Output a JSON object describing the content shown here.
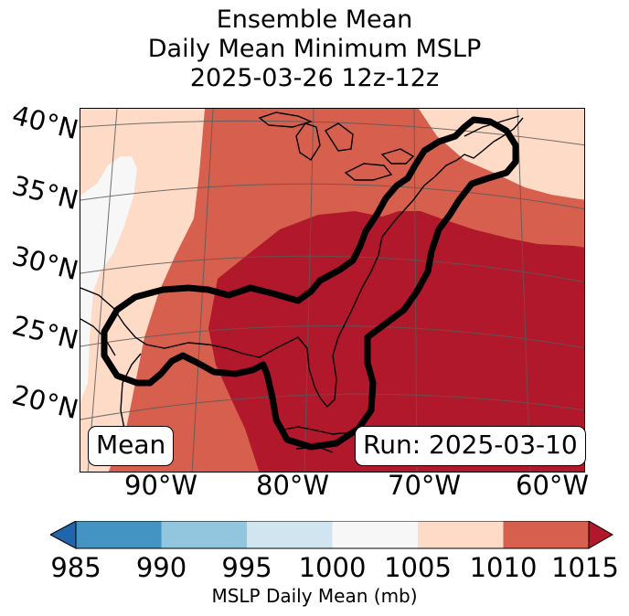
{
  "title": {
    "line1": "Ensemble Mean",
    "line2": "Daily Mean Minimum MSLP",
    "line3": "2025-03-26 12z-12z"
  },
  "latitude_labels": [
    "40°N",
    "35°N",
    "30°N",
    "25°N",
    "20°N"
  ],
  "longitude_labels": [
    "90°W",
    "80°W",
    "70°W",
    "60°W"
  ],
  "badges": {
    "left": "Mean",
    "right": "Run: 2025-03-10"
  },
  "colorbar": {
    "ticks": [
      "985",
      "990",
      "995",
      "1000",
      "1005",
      "1010",
      "1015"
    ],
    "label": "MSLP Daily Mean (mb)",
    "colors": {
      "below_985": "#2166ac",
      "985_990": "#4393c3",
      "990_995": "#92c5de",
      "995_1000": "#d1e5f0",
      "1000_1005": "#f7f7f7",
      "1005_1010": "#fddbc7",
      "1010_1015": "#d6604d",
      "above_1015": "#b2182b"
    }
  },
  "map": {
    "contour_color": "#000000",
    "coast_color": "#000000",
    "grid_color": "#5a5a5a"
  }
}
